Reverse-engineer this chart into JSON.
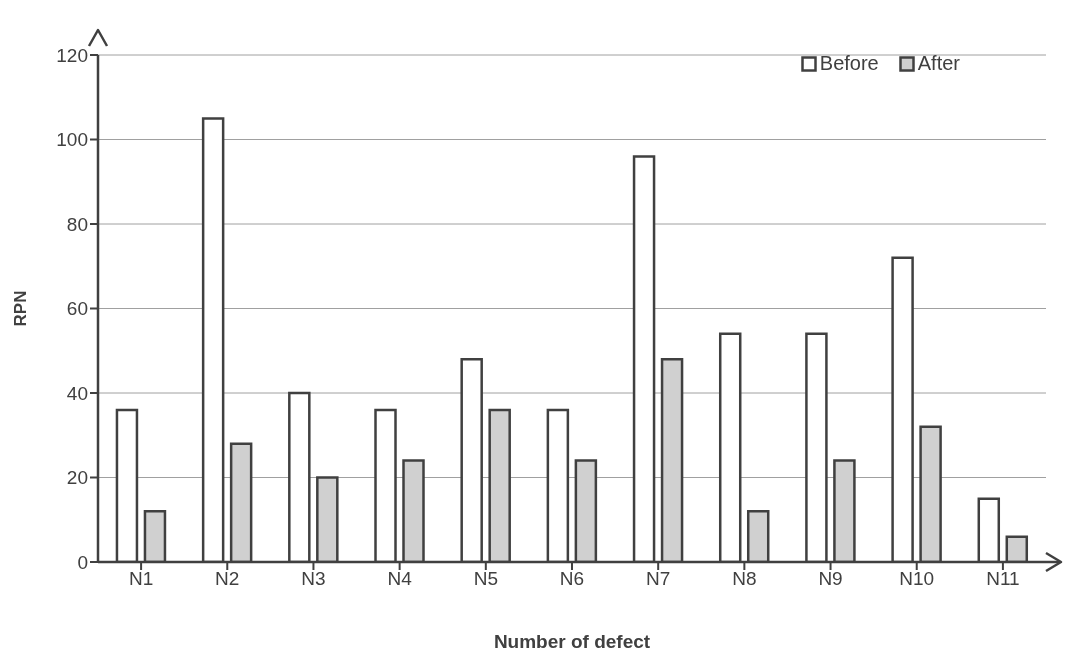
{
  "chart_data": {
    "type": "bar",
    "xlabel": "Number of defect",
    "ylabel": "RPN",
    "categories": [
      "N1",
      "N2",
      "N3",
      "N4",
      "N5",
      "N6",
      "N7",
      "N8",
      "N9",
      "N10",
      "N11"
    ],
    "series": [
      {
        "name": "Before",
        "color": "#ffffff",
        "values": [
          36,
          105,
          40,
          36,
          48,
          36,
          96,
          54,
          54,
          72,
          15
        ]
      },
      {
        "name": "After",
        "color": "#d0d0d0",
        "values": [
          12,
          28,
          20,
          24,
          36,
          24,
          48,
          12,
          24,
          32,
          6
        ]
      }
    ],
    "ylim": [
      0,
      120
    ],
    "yticks": [
      0,
      20,
      40,
      60,
      80,
      100,
      120
    ],
    "grid": "y",
    "legend": "top right"
  }
}
